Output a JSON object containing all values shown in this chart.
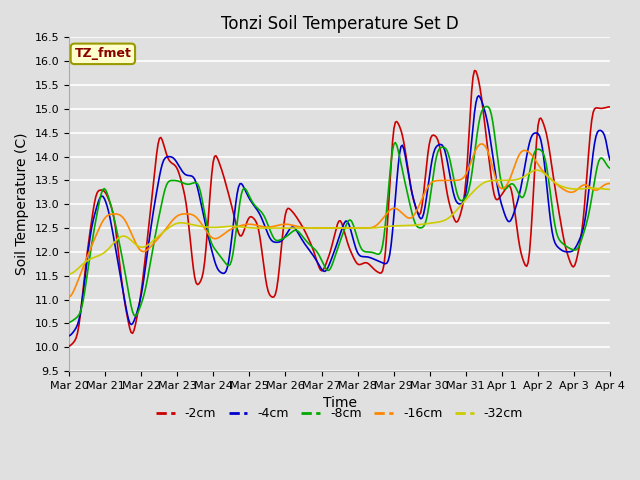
{
  "title": "Tonzi Soil Temperature Set D",
  "xlabel": "Time",
  "ylabel": "Soil Temperature (C)",
  "ylim": [
    9.5,
    16.5
  ],
  "legend_label": "TZ_fmet",
  "series_labels": [
    "-2cm",
    "-4cm",
    "-8cm",
    "-16cm",
    "-32cm"
  ],
  "series_colors": [
    "#cc0000",
    "#0000cc",
    "#00aa00",
    "#ff8800",
    "#cccc00"
  ],
  "x_tick_labels": [
    "Mar 20",
    "Mar 21",
    "Mar 22",
    "Mar 23",
    "Mar 24",
    "Mar 25",
    "Mar 26",
    "Mar 27",
    "Mar 28",
    "Mar 29",
    "Mar 30",
    "Mar 31",
    "Apr 1",
    "Apr 2",
    "Apr 3",
    "Apr 4"
  ],
  "background_color": "#e0e0e0",
  "plot_bg_color": "#e0e0e0",
  "grid_color": "#ffffff",
  "title_fontsize": 12,
  "axis_fontsize": 10,
  "tick_fontsize": 8,
  "legend_box_color": "#ffffcc",
  "legend_box_edge": "#999900",
  "legend_label_color": "#880000"
}
